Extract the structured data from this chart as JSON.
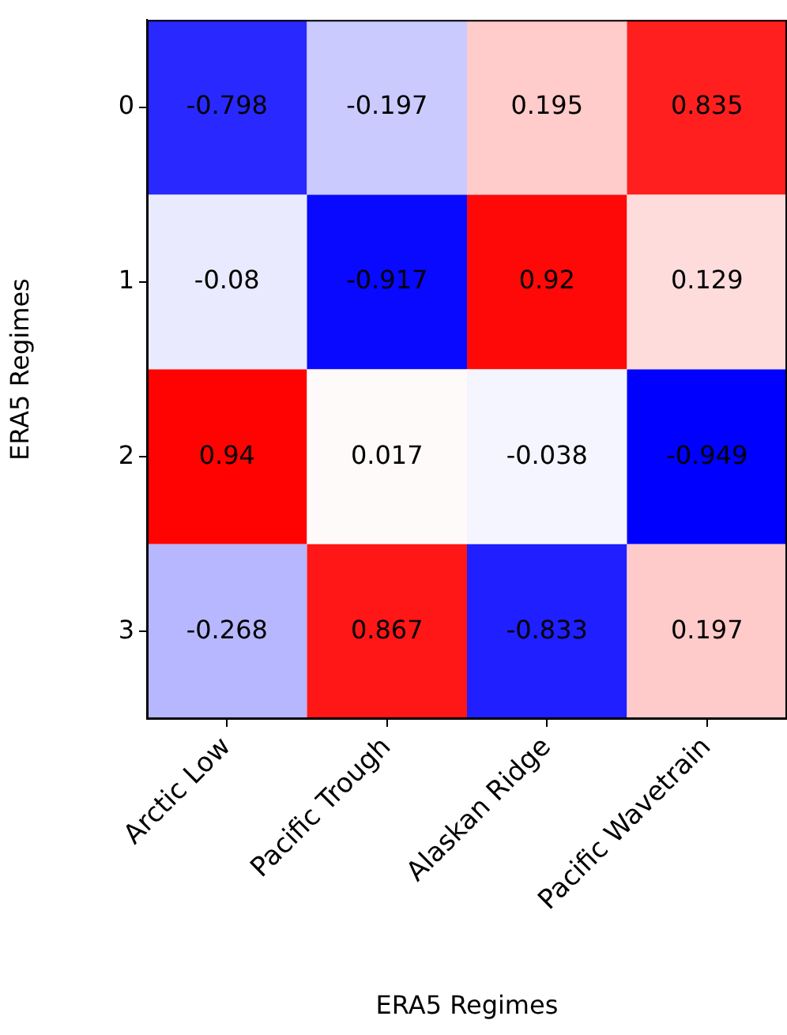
{
  "chart_data": {
    "type": "heatmap",
    "xlabel": "ERA5 Regimes",
    "ylabel": "ERA5 Regimes",
    "categories": [
      "Arctic Low",
      "Pacific Trough",
      "Alaskan Ridge",
      "Pacific Wavetrain"
    ],
    "y_categories": [
      "0",
      "1",
      "2",
      "3"
    ],
    "cells": [
      [
        -0.798,
        -0.197,
        0.195,
        0.835
      ],
      [
        -0.08,
        -0.917,
        0.92,
        0.129
      ],
      [
        0.94,
        0.017,
        -0.038,
        -0.949
      ],
      [
        -0.268,
        0.867,
        -0.833,
        0.197
      ]
    ],
    "data_labels": true,
    "grid": false,
    "legend": false
  }
}
